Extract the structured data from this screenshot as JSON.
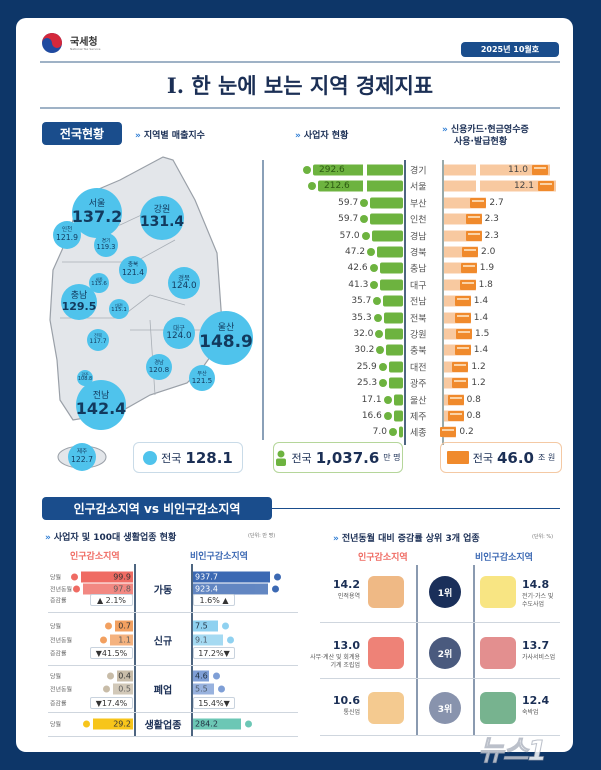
{
  "header": {
    "agency": "국세청",
    "agency_sub": "National Tax Service",
    "issue": "2025년 10월호",
    "title": "I. 한 눈에 보는 지역 경제지표"
  },
  "colors": {
    "background": "#0d3668",
    "navy": "#1a4d8c",
    "bubble": "#4fc3ec",
    "business_green": "#6db33f",
    "card_orange": "#f08a2c",
    "card_light": "#f8c9a0",
    "decline_red": "#ef6b63",
    "non_decline_blue": "#3c69b3"
  },
  "national": {
    "section_label": "전국현황",
    "sales_index": {
      "subtitle": "지역별 매출지수",
      "regions": [
        {
          "name": "서울",
          "value": "137.2"
        },
        {
          "name": "강원",
          "value": "131.4"
        },
        {
          "name": "인천",
          "value": "121.9"
        },
        {
          "name": "경기",
          "value": "119.3"
        },
        {
          "name": "충북",
          "value": "121.4"
        },
        {
          "name": "세종",
          "value": "115.6"
        },
        {
          "name": "대전",
          "value": "115.1"
        },
        {
          "name": "충남",
          "value": "129.5"
        },
        {
          "name": "경북",
          "value": "124.0"
        },
        {
          "name": "대구",
          "value": "124.0"
        },
        {
          "name": "울산",
          "value": "148.9"
        },
        {
          "name": "전북",
          "value": "117.7"
        },
        {
          "name": "경남",
          "value": "120.8"
        },
        {
          "name": "부산",
          "value": "121.5"
        },
        {
          "name": "광주",
          "value": "108.8"
        },
        {
          "name": "전남",
          "value": "142.4"
        },
        {
          "name": "제주",
          "value": "122.7"
        }
      ],
      "total_label": "전국",
      "total_value": "128.1"
    },
    "business": {
      "subtitle": "사업자 현황",
      "total_label": "전국",
      "total_value": "1,037.6",
      "total_unit": "만 명",
      "icon": "person-icon"
    },
    "card": {
      "subtitle_line1": "신용카드·현금영수증",
      "subtitle_line2": "사용·발급현황",
      "total_label": "전국",
      "total_value": "46.0",
      "total_unit": "조 원",
      "icon": "credit-card-icon"
    },
    "rows": [
      {
        "region": "경기",
        "business": "292.6",
        "card": "11.0"
      },
      {
        "region": "서울",
        "business": "212.6",
        "card": "12.1"
      },
      {
        "region": "부산",
        "business": "59.7",
        "card": "2.7"
      },
      {
        "region": "인천",
        "business": "59.7",
        "card": "2.3"
      },
      {
        "region": "경남",
        "business": "57.0",
        "card": "2.3"
      },
      {
        "region": "경북",
        "business": "47.2",
        "card": "2.0"
      },
      {
        "region": "충남",
        "business": "42.6",
        "card": "1.9"
      },
      {
        "region": "대구",
        "business": "41.3",
        "card": "1.8"
      },
      {
        "region": "전남",
        "business": "35.7",
        "card": "1.4"
      },
      {
        "region": "전북",
        "business": "35.3",
        "card": "1.4"
      },
      {
        "region": "강원",
        "business": "32.0",
        "card": "1.5"
      },
      {
        "region": "충북",
        "business": "30.2",
        "card": "1.4"
      },
      {
        "region": "대전",
        "business": "25.9",
        "card": "1.2"
      },
      {
        "region": "광주",
        "business": "25.3",
        "card": "1.2"
      },
      {
        "region": "울산",
        "business": "17.1",
        "card": "0.8"
      },
      {
        "region": "제주",
        "business": "16.6",
        "card": "0.8"
      },
      {
        "region": "세종",
        "business": "7.0",
        "card": "0.2"
      }
    ]
  },
  "compare": {
    "section_label": "인구감소지역 vs 비인구감소지역",
    "left": {
      "subtitle": "사업자 및 100대 생활업종 현황",
      "unit": "(단위: 만 명)",
      "decline_label": "인구감소지역",
      "non_decline_label": "비인구감소지역",
      "row_labels": {
        "current": "당월",
        "prev": "전년동월",
        "change": "증감률"
      },
      "groups": [
        {
          "name": "가동",
          "decline": {
            "current": "99.9",
            "prev": "97.8",
            "change": "▲ 2.1%"
          },
          "non_decline": {
            "current": "937.7",
            "prev": "923.4",
            "change": "1.6% ▲"
          }
        },
        {
          "name": "신규",
          "decline": {
            "current": "0.7",
            "prev": "1.1",
            "change": "▼41.5%"
          },
          "non_decline": {
            "current": "7.5",
            "prev": "9.1",
            "change": "17.2%▼"
          }
        },
        {
          "name": "폐업",
          "decline": {
            "current": "0.4",
            "prev": "0.5",
            "change": "▼17.4%"
          },
          "non_decline": {
            "current": "4.6",
            "prev": "5.5",
            "change": "15.4%▼"
          }
        },
        {
          "name": "생활업종",
          "decline": {
            "current": "29.2"
          },
          "non_decline": {
            "current": "284.2"
          }
        }
      ]
    },
    "right": {
      "subtitle": "전년동월 대비 증감률 상위 3개 업종",
      "unit": "(단위: %)",
      "decline_label": "인구감소지역",
      "non_decline_label": "비인구감소지역",
      "ranks": [
        {
          "rank": "1위",
          "decline": {
            "value": "14.2",
            "label": "인적용역",
            "icon": "people-icon"
          },
          "non_decline": {
            "value": "14.8",
            "label": "전기·가스 및 수도사업",
            "icon": "lightbulb-icon"
          }
        },
        {
          "rank": "2위",
          "decline": {
            "value": "13.0",
            "label": "사무·계산 및 회계용 기계 조립업",
            "icon": "worker-gear-icon"
          },
          "non_decline": {
            "value": "13.7",
            "label": "가사서비스업",
            "icon": "house-icon"
          }
        },
        {
          "rank": "3위",
          "decline": {
            "value": "10.6",
            "label": "통신업",
            "icon": "smartphone-icon"
          },
          "non_decline": {
            "value": "12.4",
            "label": "숙박업",
            "icon": "hotel-icon"
          }
        }
      ]
    }
  },
  "watermark": "뉴스1"
}
